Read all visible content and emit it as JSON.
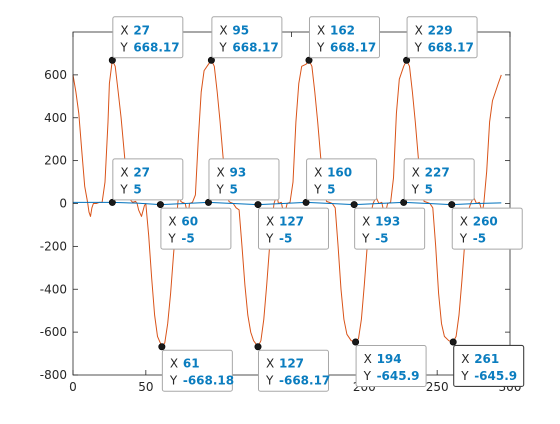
{
  "chart_data": {
    "type": "line",
    "xlim": [
      0,
      300
    ],
    "ylim": [
      -800,
      800
    ],
    "xticks": [
      0,
      50,
      100,
      150,
      200,
      250,
      300
    ],
    "yticks": [
      -800,
      -600,
      -400,
      -200,
      0,
      200,
      400,
      600
    ],
    "xtick_labels": [
      "0",
      "50",
      "100",
      "150",
      "200",
      "250",
      "300"
    ],
    "ytick_labels": [
      "-800",
      "-600",
      "-400",
      "-200",
      "0",
      "200",
      "400",
      "600"
    ],
    "grid": false,
    "series": [
      {
        "color": "#d95319",
        "points": [
          [
            0,
            600
          ],
          [
            2,
            520
          ],
          [
            4,
            420
          ],
          [
            6,
            250
          ],
          [
            8,
            80
          ],
          [
            10,
            5
          ],
          [
            11,
            -40
          ],
          [
            12,
            -60
          ],
          [
            13,
            -20
          ],
          [
            14,
            0
          ],
          [
            16,
            0
          ],
          [
            18,
            5
          ],
          [
            20,
            5
          ],
          [
            22,
            100
          ],
          [
            24,
            380
          ],
          [
            25,
            560
          ],
          [
            27,
            668.17
          ],
          [
            29,
            640
          ],
          [
            31,
            520
          ],
          [
            33,
            400
          ],
          [
            35,
            250
          ],
          [
            37,
            100
          ],
          [
            39,
            20
          ],
          [
            41,
            5
          ],
          [
            43,
            10
          ],
          [
            44,
            0
          ],
          [
            45,
            -30
          ],
          [
            47,
            -60
          ],
          [
            49,
            -10
          ],
          [
            50,
            0
          ],
          [
            52,
            -150
          ],
          [
            54,
            -350
          ],
          [
            56,
            -520
          ],
          [
            58,
            -620
          ],
          [
            61,
            -668.18
          ],
          [
            63,
            -650
          ],
          [
            65,
            -560
          ],
          [
            67,
            -420
          ],
          [
            69,
            -240
          ],
          [
            71,
            -80
          ],
          [
            72,
            5
          ],
          [
            73,
            60
          ],
          [
            74,
            10
          ],
          [
            75,
            5
          ],
          [
            77,
            0
          ],
          [
            79,
            -60
          ],
          [
            80,
            0
          ],
          [
            82,
            5
          ],
          [
            84,
            40
          ],
          [
            86,
            300
          ],
          [
            88,
            520
          ],
          [
            90,
            620
          ],
          [
            93,
            650
          ],
          [
            95,
            668.17
          ],
          [
            97,
            640
          ],
          [
            99,
            520
          ],
          [
            101,
            380
          ],
          [
            103,
            220
          ],
          [
            105,
            80
          ],
          [
            107,
            10
          ],
          [
            108,
            5
          ],
          [
            110,
            0
          ],
          [
            112,
            -20
          ],
          [
            114,
            -30
          ],
          [
            116,
            -200
          ],
          [
            118,
            -380
          ],
          [
            120,
            -520
          ],
          [
            122,
            -600
          ],
          [
            124,
            -640
          ],
          [
            127,
            -668.17
          ],
          [
            129,
            -640
          ],
          [
            131,
            -540
          ],
          [
            133,
            -380
          ],
          [
            135,
            -200
          ],
          [
            137,
            -60
          ],
          [
            138,
            0
          ],
          [
            140,
            40
          ],
          [
            141,
            0
          ],
          [
            143,
            5
          ],
          [
            145,
            -60
          ],
          [
            147,
            0
          ],
          [
            149,
            5
          ],
          [
            151,
            100
          ],
          [
            153,
            380
          ],
          [
            155,
            560
          ],
          [
            157,
            640
          ],
          [
            160,
            650
          ],
          [
            162,
            668.17
          ],
          [
            164,
            640
          ],
          [
            166,
            520
          ],
          [
            168,
            380
          ],
          [
            170,
            220
          ],
          [
            172,
            80
          ],
          [
            174,
            10
          ],
          [
            176,
            5
          ],
          [
            178,
            0
          ],
          [
            180,
            -20
          ],
          [
            182,
            -200
          ],
          [
            184,
            -400
          ],
          [
            186,
            -540
          ],
          [
            188,
            -610
          ],
          [
            191,
            -640
          ],
          [
            194,
            -645.9
          ],
          [
            196,
            -630
          ],
          [
            198,
            -540
          ],
          [
            200,
            -380
          ],
          [
            202,
            -200
          ],
          [
            204,
            -60
          ],
          [
            206,
            0
          ],
          [
            208,
            30
          ],
          [
            210,
            0
          ],
          [
            212,
            5
          ],
          [
            214,
            -60
          ],
          [
            216,
            0
          ],
          [
            218,
            5
          ],
          [
            220,
            120
          ],
          [
            222,
            420
          ],
          [
            224,
            580
          ],
          [
            227,
            640
          ],
          [
            229,
            668.17
          ],
          [
            231,
            640
          ],
          [
            233,
            520
          ],
          [
            235,
            380
          ],
          [
            237,
            220
          ],
          [
            239,
            80
          ],
          [
            241,
            10
          ],
          [
            243,
            5
          ],
          [
            245,
            0
          ],
          [
            247,
            -20
          ],
          [
            249,
            -200
          ],
          [
            251,
            -420
          ],
          [
            253,
            -560
          ],
          [
            255,
            -620
          ],
          [
            258,
            -640
          ],
          [
            261,
            -645.9
          ],
          [
            263,
            -620
          ],
          [
            265,
            -520
          ],
          [
            267,
            -360
          ],
          [
            269,
            -180
          ],
          [
            271,
            -40
          ],
          [
            273,
            0
          ],
          [
            275,
            30
          ],
          [
            277,
            0
          ],
          [
            279,
            5
          ],
          [
            281,
            -40
          ],
          [
            282,
            0
          ],
          [
            284,
            150
          ],
          [
            286,
            380
          ],
          [
            288,
            480
          ],
          [
            290,
            520
          ],
          [
            292,
            560
          ],
          [
            294,
            600
          ]
        ]
      },
      {
        "color": "#0072bd",
        "points": [
          [
            0,
            5
          ],
          [
            27,
            5
          ],
          [
            44,
            2
          ],
          [
            60,
            -5
          ],
          [
            77,
            0
          ],
          [
            93,
            5
          ],
          [
            110,
            0
          ],
          [
            127,
            -5
          ],
          [
            144,
            0
          ],
          [
            160,
            5
          ],
          [
            177,
            0
          ],
          [
            193,
            -5
          ],
          [
            210,
            0
          ],
          [
            227,
            5
          ],
          [
            244,
            0
          ],
          [
            260,
            -5
          ],
          [
            277,
            0
          ],
          [
            294,
            3
          ]
        ]
      }
    ],
    "datatips": [
      {
        "x": 27,
        "y": 668.17,
        "x_text": "27",
        "y_text": "668.17",
        "placement": "above-right"
      },
      {
        "x": 95,
        "y": 668.17,
        "x_text": "95",
        "y_text": "668.17",
        "placement": "above-right"
      },
      {
        "x": 162,
        "y": 668.17,
        "x_text": "162",
        "y_text": "668.17",
        "placement": "above-right"
      },
      {
        "x": 229,
        "y": 668.17,
        "x_text": "229",
        "y_text": "668.17",
        "placement": "above-right"
      },
      {
        "x": 27,
        "y": 5,
        "x_text": "27",
        "y_text": "5",
        "placement": "above-right"
      },
      {
        "x": 93,
        "y": 5,
        "x_text": "93",
        "y_text": "5",
        "placement": "above-right"
      },
      {
        "x": 160,
        "y": 5,
        "x_text": "160",
        "y_text": "5",
        "placement": "above-right"
      },
      {
        "x": 227,
        "y": 5,
        "x_text": "227",
        "y_text": "5",
        "placement": "above-right"
      },
      {
        "x": 60,
        "y": -5,
        "x_text": "60",
        "y_text": "-5",
        "placement": "below-right"
      },
      {
        "x": 127,
        "y": -5,
        "x_text": "127",
        "y_text": "-5",
        "placement": "below-right"
      },
      {
        "x": 193,
        "y": -5,
        "x_text": "193",
        "y_text": "-5",
        "placement": "below-right"
      },
      {
        "x": 260,
        "y": -5,
        "x_text": "260",
        "y_text": "-5",
        "placement": "below-right"
      },
      {
        "x": 61,
        "y": -668.18,
        "x_text": "61",
        "y_text": "-668.18",
        "placement": "below-right"
      },
      {
        "x": 127,
        "y": -668.17,
        "x_text": "127",
        "y_text": "-668.17",
        "placement": "below-right"
      },
      {
        "x": 194,
        "y": -645.9,
        "x_text": "194",
        "y_text": "-645.9",
        "placement": "below-right"
      },
      {
        "x": 261,
        "y": -645.9,
        "x_text": "261",
        "y_text": "-645.9",
        "placement": "below-right",
        "selected": true
      }
    ],
    "datatip_x_label": "X",
    "datatip_y_label": "Y",
    "datatip_value_color": "#0b7dbf",
    "axis_color": "#262626"
  }
}
